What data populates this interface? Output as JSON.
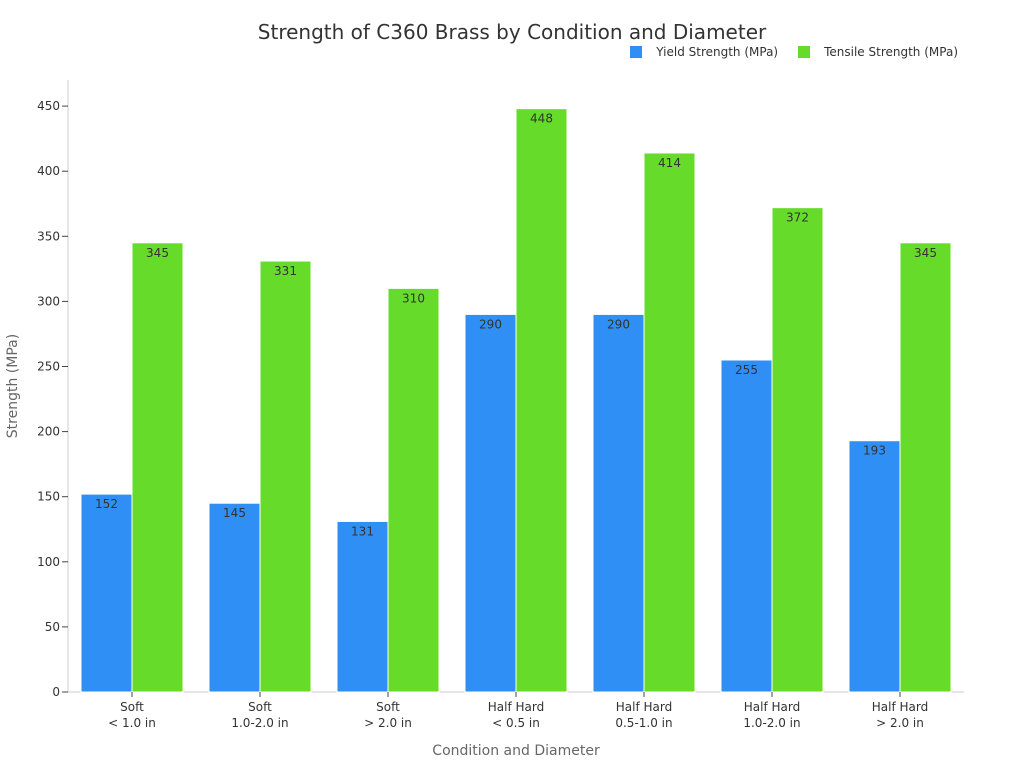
{
  "chart_data": {
    "type": "bar",
    "title": "Strength of C360 Brass by Condition and Diameter",
    "xlabel": "Condition and Diameter",
    "ylabel": "Strength (MPa)",
    "ylim": [
      0,
      470
    ],
    "yticks": [
      0,
      50,
      100,
      150,
      200,
      250,
      300,
      350,
      400,
      450
    ],
    "grid": false,
    "legend_position": "top-right",
    "categories": [
      [
        "Soft",
        "< 1.0 in"
      ],
      [
        "Soft",
        "1.0-2.0 in"
      ],
      [
        "Soft",
        "> 2.0 in"
      ],
      [
        "Half Hard",
        "< 0.5 in"
      ],
      [
        "Half Hard",
        "0.5-1.0 in"
      ],
      [
        "Half Hard",
        "1.0-2.0 in"
      ],
      [
        "Half Hard",
        "> 2.0 in"
      ]
    ],
    "series": [
      {
        "name": "Yield Strength (MPa)",
        "color": "#2f8ff5",
        "values": [
          152,
          145,
          131,
          290,
          290,
          255,
          193
        ]
      },
      {
        "name": "Tensile Strength (MPa)",
        "color": "#66db2a",
        "values": [
          345,
          331,
          310,
          448,
          414,
          372,
          345
        ]
      }
    ]
  }
}
